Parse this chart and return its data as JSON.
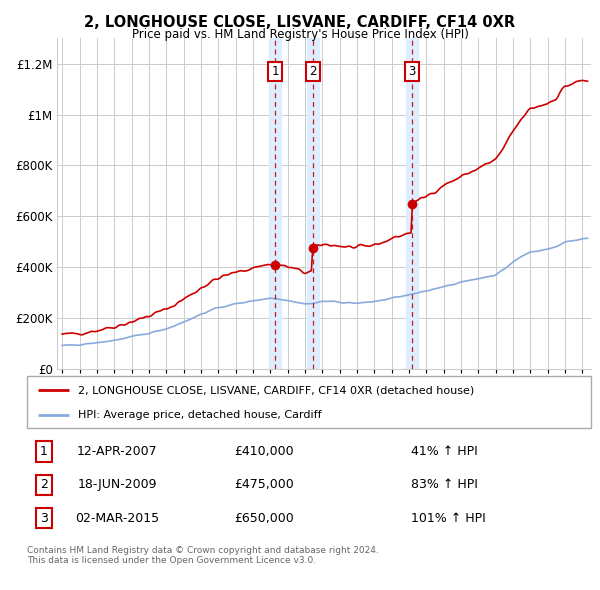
{
  "title": "2, LONGHOUSE CLOSE, LISVANE, CARDIFF, CF14 0XR",
  "subtitle": "Price paid vs. HM Land Registry's House Price Index (HPI)",
  "xlim": [
    1994.7,
    2025.5
  ],
  "ylim": [
    0,
    1300000
  ],
  "yticks": [
    0,
    200000,
    400000,
    600000,
    800000,
    1000000,
    1200000
  ],
  "ytick_labels": [
    "£0",
    "£200K",
    "£400K",
    "£600K",
    "£800K",
    "£1M",
    "£1.2M"
  ],
  "transactions": [
    {
      "num": 1,
      "date": "12-APR-2007",
      "price": 410000,
      "pct": "41%",
      "year": 2007.28
    },
    {
      "num": 2,
      "date": "18-JUN-2009",
      "price": 475000,
      "pct": "83%",
      "year": 2009.46
    },
    {
      "num": 3,
      "date": "02-MAR-2015",
      "price": 650000,
      "pct": "101%",
      "year": 2015.17
    }
  ],
  "legend_property": "2, LONGHOUSE CLOSE, LISVANE, CARDIFF, CF14 0XR (detached house)",
  "legend_hpi": "HPI: Average price, detached house, Cardiff",
  "footer": "Contains HM Land Registry data © Crown copyright and database right 2024.\nThis data is licensed under the Open Government Licence v3.0.",
  "property_line_color": "#cc0000",
  "hpi_line_color": "#88aadd",
  "vline_color": "#cc0000",
  "shade_color": "#ddeeff",
  "background_color": "#ffffff",
  "grid_color": "#cccccc",
  "marker_box_color": "#cc0000",
  "hpi_years": [
    1995,
    1995.5,
    1996,
    1996.5,
    1997,
    1997.5,
    1998,
    1998.5,
    1999,
    1999.5,
    2000,
    2000.5,
    2001,
    2001.5,
    2002,
    2002.5,
    2003,
    2003.5,
    2004,
    2004.5,
    2005,
    2005.5,
    2006,
    2006.5,
    2007,
    2007.5,
    2008,
    2008.5,
    2009,
    2009.5,
    2010,
    2010.5,
    2011,
    2011.5,
    2012,
    2012.5,
    2013,
    2013.5,
    2014,
    2014.5,
    2015,
    2015.5,
    2016,
    2016.5,
    2017,
    2017.5,
    2018,
    2018.5,
    2019,
    2019.5,
    2020,
    2020.5,
    2021,
    2021.5,
    2022,
    2022.5,
    2023,
    2023.5,
    2024,
    2024.5,
    2025
  ],
  "hpi_vals": [
    90000,
    92000,
    95000,
    98000,
    102000,
    107000,
    112000,
    118000,
    125000,
    132000,
    140000,
    149000,
    158000,
    170000,
    185000,
    198000,
    215000,
    228000,
    240000,
    248000,
    255000,
    261000,
    268000,
    273000,
    278000,
    275000,
    270000,
    263000,
    255000,
    258000,
    265000,
    265000,
    262000,
    260000,
    258000,
    260000,
    265000,
    270000,
    278000,
    284000,
    290000,
    297000,
    305000,
    315000,
    325000,
    332000,
    340000,
    347000,
    355000,
    362000,
    370000,
    392000,
    420000,
    442000,
    460000,
    465000,
    470000,
    480000,
    500000,
    505000,
    510000
  ]
}
